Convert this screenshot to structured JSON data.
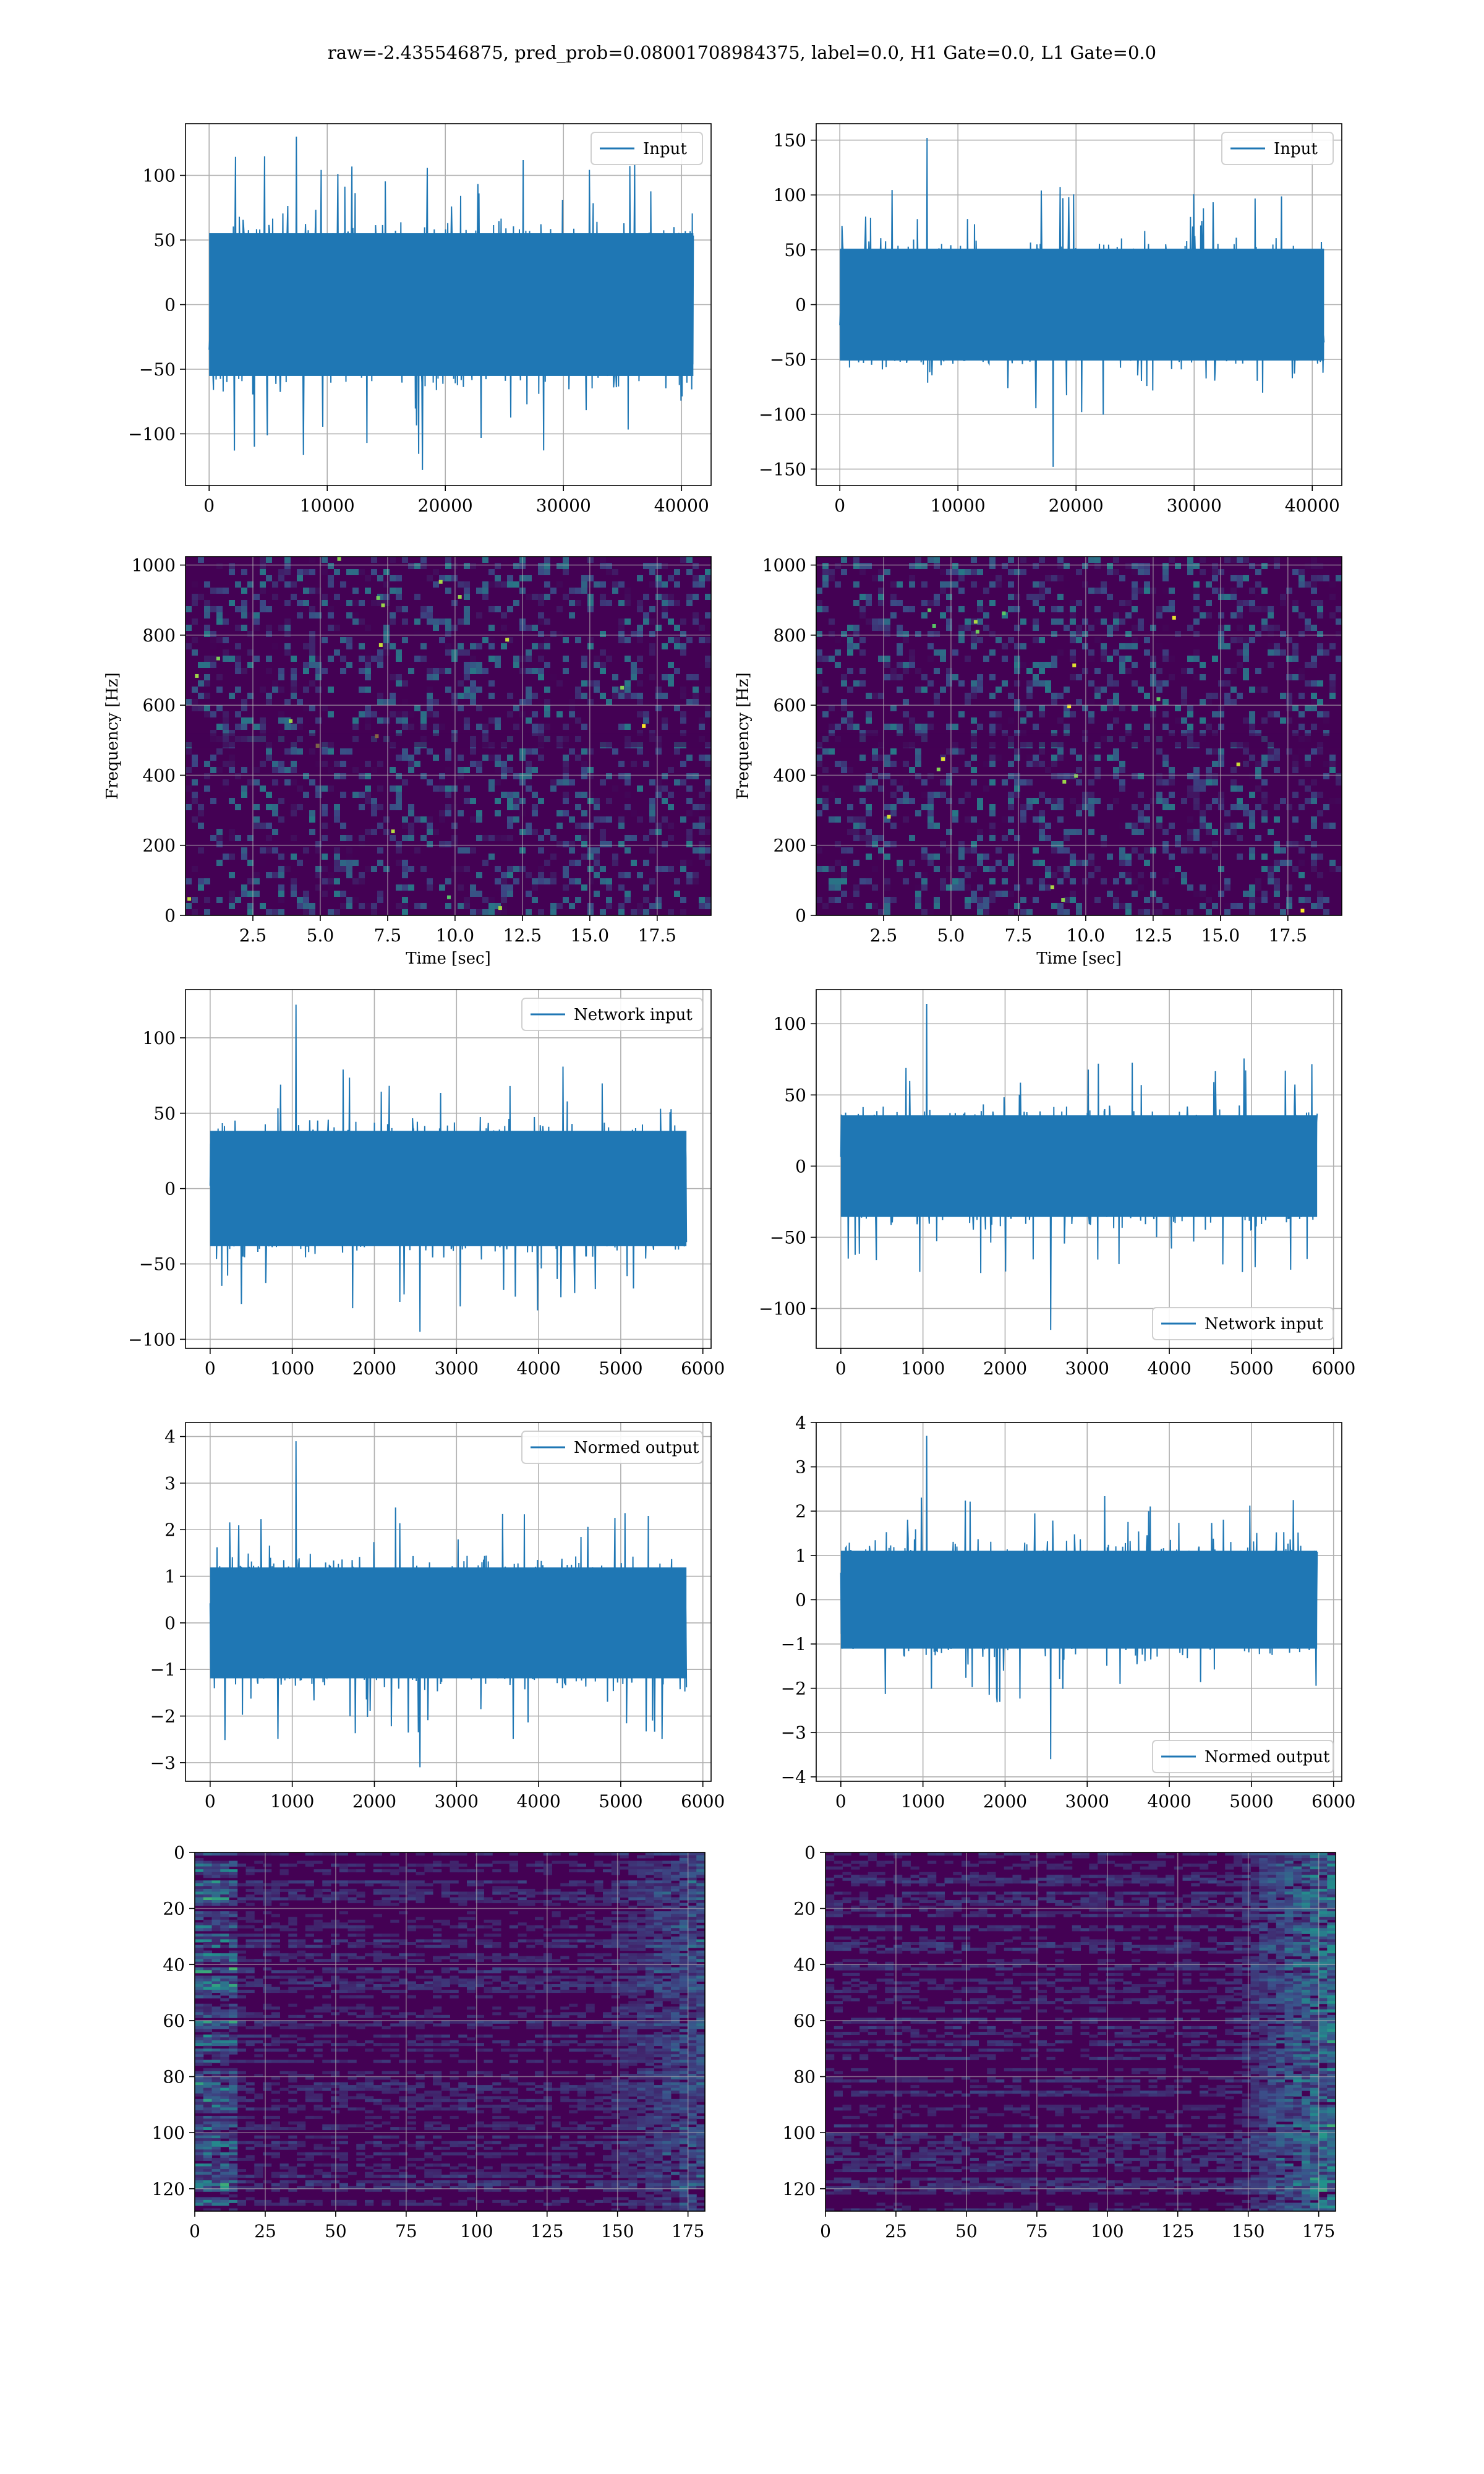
{
  "suptitle": "raw=-2.435546875, pred_prob=0.08001708984375, label=0.0, H1 Gate=0.0, L1 Gate=0.0",
  "colors": {
    "series": "#1f77b4",
    "grid": "#b0b0b0",
    "spec_bg": "#440154",
    "spec_mid": "#3b528b",
    "spec_hi": "#21918c",
    "spec_peak": "#fde725"
  },
  "chart_data": [
    {
      "id": "input-h1",
      "type": "line",
      "legend": "Input",
      "legend_loc": "upper right",
      "xlim": [
        -2000,
        42500
      ],
      "ylim": [
        -140,
        140
      ],
      "xticks": [
        0,
        10000,
        20000,
        30000,
        40000
      ],
      "xticklabels": [
        "0",
        "10000",
        "20000",
        "30000",
        "40000"
      ],
      "yticks": [
        -100,
        -50,
        0,
        50,
        100
      ],
      "yticklabels": [
        "−100",
        "−50",
        "0",
        "50",
        "100"
      ],
      "signal": {
        "x_range": [
          0,
          41000
        ],
        "core_amplitude": 65,
        "peak_max": 130,
        "peak_min": -128
      }
    },
    {
      "id": "input-l1",
      "type": "line",
      "legend": "Input",
      "legend_loc": "upper right",
      "xlim": [
        -2000,
        42500
      ],
      "ylim": [
        -165,
        165
      ],
      "xticks": [
        0,
        10000,
        20000,
        30000,
        40000
      ],
      "xticklabels": [
        "0",
        "10000",
        "20000",
        "30000",
        "40000"
      ],
      "yticks": [
        -150,
        -100,
        -50,
        0,
        50,
        100,
        150
      ],
      "yticklabels": [
        "−150",
        "−100",
        "−50",
        "0",
        "50",
        "100",
        "150"
      ],
      "signal": {
        "x_range": [
          0,
          41000
        ],
        "core_amplitude": 60,
        "peak_max": 152,
        "peak_min": -148
      }
    },
    {
      "id": "spec-h1",
      "type": "heatmap",
      "xlabel": "Time [sec]",
      "ylabel": "Frequency [Hz]",
      "xlim": [
        0,
        19.5
      ],
      "ylim": [
        0,
        1024
      ],
      "xticks": [
        2.5,
        5.0,
        7.5,
        10.0,
        12.5,
        15.0,
        17.5
      ],
      "xticklabels": [
        "2.5",
        "5.0",
        "7.5",
        "10.0",
        "12.5",
        "15.0",
        "17.5"
      ],
      "yticks": [
        0,
        200,
        400,
        600,
        800,
        1000
      ],
      "yticklabels": [
        "0",
        "200",
        "400",
        "600",
        "800",
        "1000"
      ]
    },
    {
      "id": "spec-l1",
      "type": "heatmap",
      "xlabel": "Time [sec]",
      "ylabel": "Frequency [Hz]",
      "xlim": [
        0,
        19.5
      ],
      "ylim": [
        0,
        1024
      ],
      "xticks": [
        2.5,
        5.0,
        7.5,
        10.0,
        12.5,
        15.0,
        17.5
      ],
      "xticklabels": [
        "2.5",
        "5.0",
        "7.5",
        "10.0",
        "12.5",
        "15.0",
        "17.5"
      ],
      "yticks": [
        0,
        200,
        400,
        600,
        800,
        1000
      ],
      "yticklabels": [
        "0",
        "200",
        "400",
        "600",
        "800",
        "1000"
      ]
    },
    {
      "id": "netin-h1",
      "type": "line",
      "legend": "Network input",
      "legend_loc": "upper right",
      "xlim": [
        -300,
        6100
      ],
      "ylim": [
        -106,
        132
      ],
      "xticks": [
        0,
        1000,
        2000,
        3000,
        4000,
        5000,
        6000
      ],
      "xticklabels": [
        "0",
        "1000",
        "2000",
        "3000",
        "4000",
        "5000",
        "6000"
      ],
      "yticks": [
        -100,
        -50,
        0,
        50,
        100
      ],
      "yticklabels": [
        "−100",
        "−50",
        "0",
        "50",
        "100"
      ],
      "signal": {
        "x_range": [
          0,
          5800
        ],
        "core_amplitude": 45,
        "peak_max": 122,
        "peak_min": -95
      }
    },
    {
      "id": "netin-l1",
      "type": "line",
      "legend": "Network input",
      "legend_loc": "lower right",
      "xlim": [
        -300,
        6100
      ],
      "ylim": [
        -128,
        124
      ],
      "xticks": [
        0,
        1000,
        2000,
        3000,
        4000,
        5000,
        6000
      ],
      "xticklabels": [
        "0",
        "1000",
        "2000",
        "3000",
        "4000",
        "5000",
        "6000"
      ],
      "yticks": [
        -100,
        -50,
        0,
        50,
        100
      ],
      "yticklabels": [
        "−100",
        "−50",
        "0",
        "50",
        "100"
      ],
      "signal": {
        "x_range": [
          0,
          5800
        ],
        "core_amplitude": 42,
        "peak_max": 114,
        "peak_min": -115
      }
    },
    {
      "id": "normed-h1",
      "type": "line",
      "legend": "Normed output",
      "legend_loc": "upper right",
      "xlim": [
        -300,
        6100
      ],
      "ylim": [
        -3.4,
        4.3
      ],
      "xticks": [
        0,
        1000,
        2000,
        3000,
        4000,
        5000,
        6000
      ],
      "xticklabels": [
        "0",
        "1000",
        "2000",
        "3000",
        "4000",
        "5000",
        "6000"
      ],
      "yticks": [
        -3,
        -2,
        -1,
        0,
        1,
        2,
        3,
        4
      ],
      "yticklabels": [
        "−3",
        "−2",
        "−1",
        "0",
        "1",
        "2",
        "3",
        "4"
      ],
      "signal": {
        "x_range": [
          0,
          5800
        ],
        "core_amplitude": 1.4,
        "peak_max": 3.9,
        "peak_min": -3.1
      }
    },
    {
      "id": "normed-l1",
      "type": "line",
      "legend": "Normed output",
      "legend_loc": "lower right",
      "xlim": [
        -300,
        6100
      ],
      "ylim": [
        -4.1,
        4.0
      ],
      "xticks": [
        0,
        1000,
        2000,
        3000,
        4000,
        5000,
        6000
      ],
      "xticklabels": [
        "0",
        "1000",
        "2000",
        "3000",
        "4000",
        "5000",
        "6000"
      ],
      "yticks": [
        -4,
        -3,
        -2,
        -1,
        0,
        1,
        2,
        3,
        4
      ],
      "yticklabels": [
        "−4",
        "−3",
        "−2",
        "−1",
        "0",
        "1",
        "2",
        "3",
        "4"
      ],
      "signal": {
        "x_range": [
          0,
          5800
        ],
        "core_amplitude": 1.3,
        "peak_max": 3.7,
        "peak_min": -3.6
      }
    },
    {
      "id": "features-h1",
      "type": "heatmap",
      "xlim": [
        0,
        181
      ],
      "ylim": [
        128,
        0
      ],
      "y_inverted": true,
      "xticks": [
        0,
        25,
        50,
        75,
        100,
        125,
        150,
        175
      ],
      "xticklabels": [
        "0",
        "25",
        "50",
        "75",
        "100",
        "125",
        "150",
        "175"
      ],
      "yticks": [
        0,
        20,
        40,
        60,
        80,
        100,
        120
      ],
      "yticklabels": [
        "0",
        "20",
        "40",
        "60",
        "80",
        "100",
        "120"
      ]
    },
    {
      "id": "features-l1",
      "type": "heatmap",
      "xlim": [
        0,
        181
      ],
      "ylim": [
        128,
        0
      ],
      "y_inverted": true,
      "xticks": [
        0,
        25,
        50,
        75,
        100,
        125,
        150,
        175
      ],
      "xticklabels": [
        "0",
        "25",
        "50",
        "75",
        "100",
        "125",
        "150",
        "175"
      ],
      "yticks": [
        0,
        20,
        40,
        60,
        80,
        100,
        120
      ],
      "yticklabels": [
        "0",
        "20",
        "40",
        "60",
        "80",
        "100",
        "120"
      ]
    }
  ]
}
